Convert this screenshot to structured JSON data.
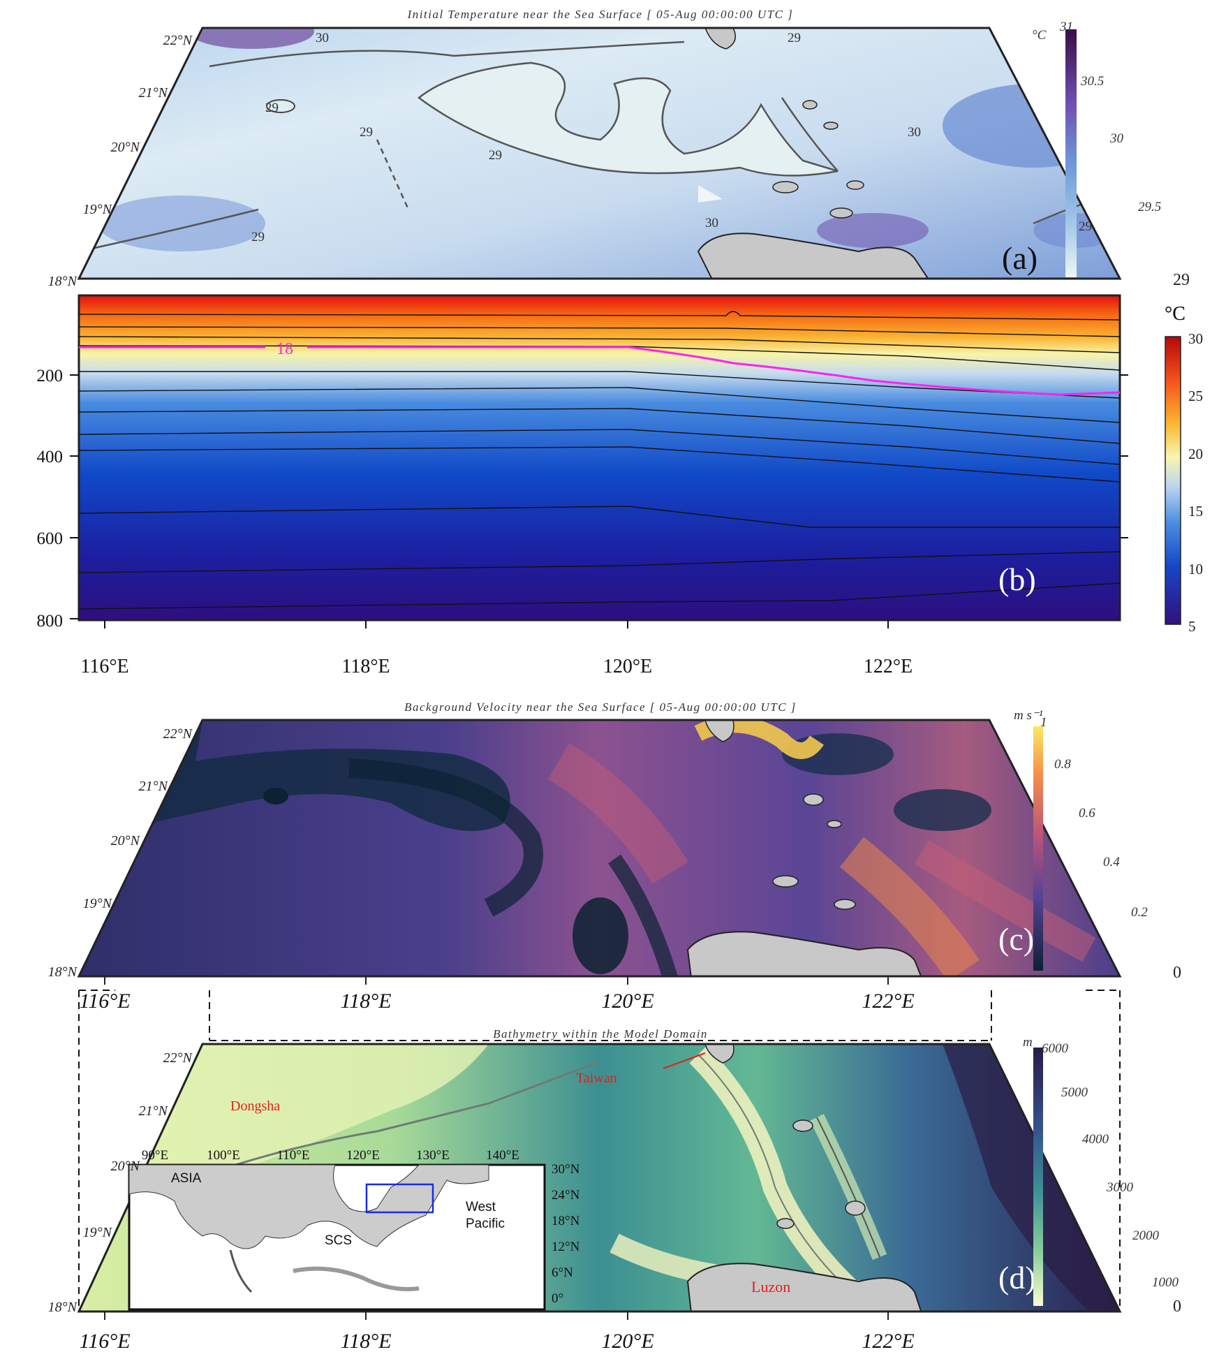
{
  "panel_a": {
    "title": "Initial Temperature near the Sea Surface [ 05-Aug 00:00:00 UTC ]",
    "label": "(a)",
    "lat_labels": [
      "22°N",
      "21°N",
      "20°N",
      "19°N",
      "18°N"
    ],
    "contour_labels": [
      "30",
      "29",
      "29",
      "29",
      "29",
      "29",
      "30",
      "30",
      "29"
    ],
    "colorbar": {
      "unit": "°C",
      "ticks": [
        "31",
        "30.5",
        "30",
        "29.5",
        "29"
      ]
    }
  },
  "panel_b": {
    "label": "(b)",
    "depth_ticks": [
      "200",
      "400",
      "600",
      "800"
    ],
    "isotherm_label": "18",
    "isotherm_color": "#ff22ee",
    "colorbar": {
      "unit": "°C",
      "ticks": [
        "30",
        "25",
        "20",
        "15",
        "10",
        "5"
      ]
    },
    "lon_labels": [
      "116°E",
      "118°E",
      "120°E",
      "122°E"
    ]
  },
  "panel_c": {
    "title": "Background Velocity near the Sea Surface [ 05-Aug 00:00:00 UTC ]",
    "label": "(c)",
    "lat_labels": [
      "22°N",
      "21°N",
      "20°N",
      "19°N",
      "18°N"
    ],
    "lon_labels": [
      "116°E",
      "118°E",
      "120°E",
      "122°E"
    ],
    "colorbar": {
      "unit": "m s⁻¹",
      "ticks": [
        "1",
        "0.8",
        "0.6",
        "0.4",
        "0.2",
        "0"
      ]
    }
  },
  "panel_d": {
    "title": "Bathymetry within the Model Domain",
    "label": "(d)",
    "lat_labels": [
      "22°N",
      "21°N",
      "20°N",
      "19°N",
      "18°N"
    ],
    "lon_labels": [
      "116°E",
      "118°E",
      "120°E",
      "122°E"
    ],
    "places": {
      "dongsha": "Dongsha",
      "taiwan": "Taiwan",
      "luzon": "Luzon"
    },
    "colorbar": {
      "unit": "m",
      "ticks": [
        "6000",
        "5000",
        "4000",
        "3000",
        "2000",
        "1000",
        "0"
      ]
    },
    "inset": {
      "lon_ticks": [
        "90°E",
        "100°E",
        "110°E",
        "120°E",
        "130°E",
        "140°E"
      ],
      "lat_ticks": [
        "30°N",
        "24°N",
        "18°N",
        "12°N",
        "6°N",
        "0°"
      ],
      "labels": {
        "asia": "ASIA",
        "scs": "SCS",
        "west": "West",
        "pacific": "Pacific"
      }
    }
  }
}
